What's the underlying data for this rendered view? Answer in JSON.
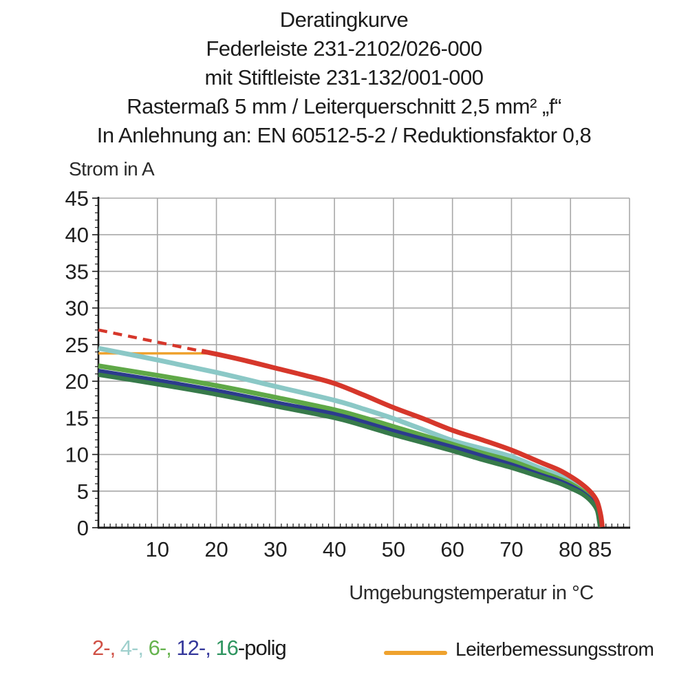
{
  "title": {
    "lines": [
      "Deratingkurve",
      "Federleiste 231-2102/026-000",
      "mit Stiftleiste 231-132/001-000",
      "Rastermaß 5 mm / Leiterquerschnitt 2,5 mm² „f“",
      "In Anlehnung an: EN 60512-5-2 / Reduktionsfaktor 0,8"
    ]
  },
  "colors": {
    "red": "#d6372b",
    "cyan": "#8bc8c6",
    "light_green": "#5fa847",
    "navy": "#2c3b8d",
    "dark_green": "#377a4a",
    "orange": "#efa22e",
    "grid": "#a8a8a8",
    "axis": "#1a1a1a",
    "text": "#1f1f1f"
  },
  "chart_data": {
    "type": "line",
    "title": "Deratingkurve",
    "xlabel": "Umgebungstemperatur in °C",
    "ylabel": "Strom in A",
    "xlim": [
      0,
      90
    ],
    "ylim": [
      0,
      45
    ],
    "grid": true,
    "x_gridline_step": 10,
    "y_gridline_step": 5,
    "x_ticks": [
      10,
      20,
      30,
      40,
      50,
      60,
      70,
      80,
      85
    ],
    "y_ticks": [
      0,
      5,
      10,
      15,
      20,
      25,
      30,
      35,
      40,
      45
    ],
    "legend_position": "below",
    "series": [
      {
        "name": "Leiterbemessungsstrom",
        "color": "#efa22e",
        "width": 3.5,
        "dash": "",
        "points": [
          [
            0,
            23.8
          ],
          [
            18.5,
            23.8
          ]
        ]
      },
      {
        "name": "2-polig-dashed",
        "color": "#d6372b",
        "width": 4.5,
        "dash": "13 9",
        "points": [
          [
            0,
            27
          ],
          [
            17.5,
            24.1
          ]
        ]
      },
      {
        "name": "4-polig",
        "color": "#8bc8c6",
        "width": 7,
        "dash": "",
        "points": [
          [
            0,
            24.5
          ],
          [
            10,
            22.9
          ],
          [
            20,
            21.2
          ],
          [
            30,
            19.3
          ],
          [
            40,
            17.4
          ],
          [
            45,
            16.2
          ],
          [
            50,
            14.9
          ],
          [
            55,
            13.4
          ],
          [
            60,
            11.9
          ],
          [
            65,
            10.8
          ],
          [
            70,
            9.7
          ],
          [
            75,
            8.1
          ],
          [
            78,
            7.2
          ],
          [
            80,
            6.4
          ],
          [
            82,
            5.4
          ],
          [
            83.5,
            4.3
          ],
          [
            84.5,
            3.0
          ],
          [
            85,
            1.5
          ],
          [
            85.2,
            0.1
          ]
        ]
      },
      {
        "name": "6-polig",
        "color": "#5fa847",
        "width": 7,
        "dash": "",
        "points": [
          [
            0,
            22.1
          ],
          [
            10,
            20.8
          ],
          [
            20,
            19.4
          ],
          [
            30,
            17.8
          ],
          [
            40,
            16.1
          ],
          [
            45,
            15.0
          ],
          [
            50,
            13.8
          ],
          [
            55,
            12.6
          ],
          [
            60,
            11.4
          ],
          [
            65,
            10.2
          ],
          [
            70,
            9.1
          ],
          [
            75,
            7.6
          ],
          [
            78,
            6.7
          ],
          [
            80,
            6.0
          ],
          [
            82,
            5.0
          ],
          [
            83.5,
            4.0
          ],
          [
            84.5,
            2.8
          ],
          [
            85,
            1.2
          ],
          [
            85.1,
            0.1
          ]
        ]
      },
      {
        "name": "12-polig",
        "color": "#2c3b8d",
        "width": 6.5,
        "dash": "",
        "points": [
          [
            0,
            21.4
          ],
          [
            10,
            20.1
          ],
          [
            20,
            18.7
          ],
          [
            30,
            17.1
          ],
          [
            40,
            15.5
          ],
          [
            45,
            14.4
          ],
          [
            50,
            13.2
          ],
          [
            55,
            12.1
          ],
          [
            60,
            11.0
          ],
          [
            65,
            9.8
          ],
          [
            70,
            8.6
          ],
          [
            75,
            7.2
          ],
          [
            78,
            6.4
          ],
          [
            80,
            5.7
          ],
          [
            82,
            4.8
          ],
          [
            83.5,
            3.8
          ],
          [
            84.5,
            2.6
          ],
          [
            85,
            0.9
          ],
          [
            85.05,
            0.1
          ]
        ]
      },
      {
        "name": "16-polig",
        "color": "#377a4a",
        "width": 6.5,
        "dash": "",
        "points": [
          [
            0,
            20.9
          ],
          [
            10,
            19.6
          ],
          [
            20,
            18.2
          ],
          [
            30,
            16.6
          ],
          [
            40,
            15.0
          ],
          [
            45,
            13.9
          ],
          [
            50,
            12.7
          ],
          [
            55,
            11.6
          ],
          [
            60,
            10.5
          ],
          [
            65,
            9.3
          ],
          [
            70,
            8.2
          ],
          [
            75,
            6.9
          ],
          [
            78,
            6.1
          ],
          [
            80,
            5.4
          ],
          [
            82,
            4.6
          ],
          [
            83.5,
            3.6
          ],
          [
            84.5,
            2.4
          ],
          [
            84.9,
            0.7
          ],
          [
            85,
            0.1
          ]
        ]
      },
      {
        "name": "2-polig",
        "color": "#d6372b",
        "width": 7,
        "dash": "",
        "points": [
          [
            17.5,
            24.1
          ],
          [
            20,
            23.7
          ],
          [
            25,
            22.8
          ],
          [
            30,
            21.8
          ],
          [
            35,
            20.8
          ],
          [
            40,
            19.7
          ],
          [
            45,
            18.1
          ],
          [
            50,
            16.4
          ],
          [
            55,
            14.9
          ],
          [
            60,
            13.3
          ],
          [
            65,
            12.0
          ],
          [
            70,
            10.6
          ],
          [
            75,
            8.9
          ],
          [
            78,
            7.9
          ],
          [
            80,
            7.0
          ],
          [
            82,
            5.9
          ],
          [
            83.5,
            4.8
          ],
          [
            84.5,
            3.6
          ],
          [
            85.1,
            1.8
          ],
          [
            85.4,
            0.1
          ]
        ]
      }
    ]
  },
  "axis_labels": {
    "ylabel": "Strom in A",
    "xlabel": "Umgebungstemperatur in °C"
  },
  "legend": {
    "poles": [
      {
        "label": "2-, ",
        "color": "#d05045"
      },
      {
        "label": "4-, ",
        "color": "#9fd0cd"
      },
      {
        "label": "6-, ",
        "color": "#66b34e"
      },
      {
        "label": "12-, ",
        "color": "#35389b"
      },
      {
        "label": "16",
        "color": "#2f9560"
      }
    ],
    "suffix": "-polig",
    "suffix_color": "#1c1c1c",
    "rated_current_label": "Leiterbemessungsstrom",
    "rated_current_color": "#efa22e"
  }
}
